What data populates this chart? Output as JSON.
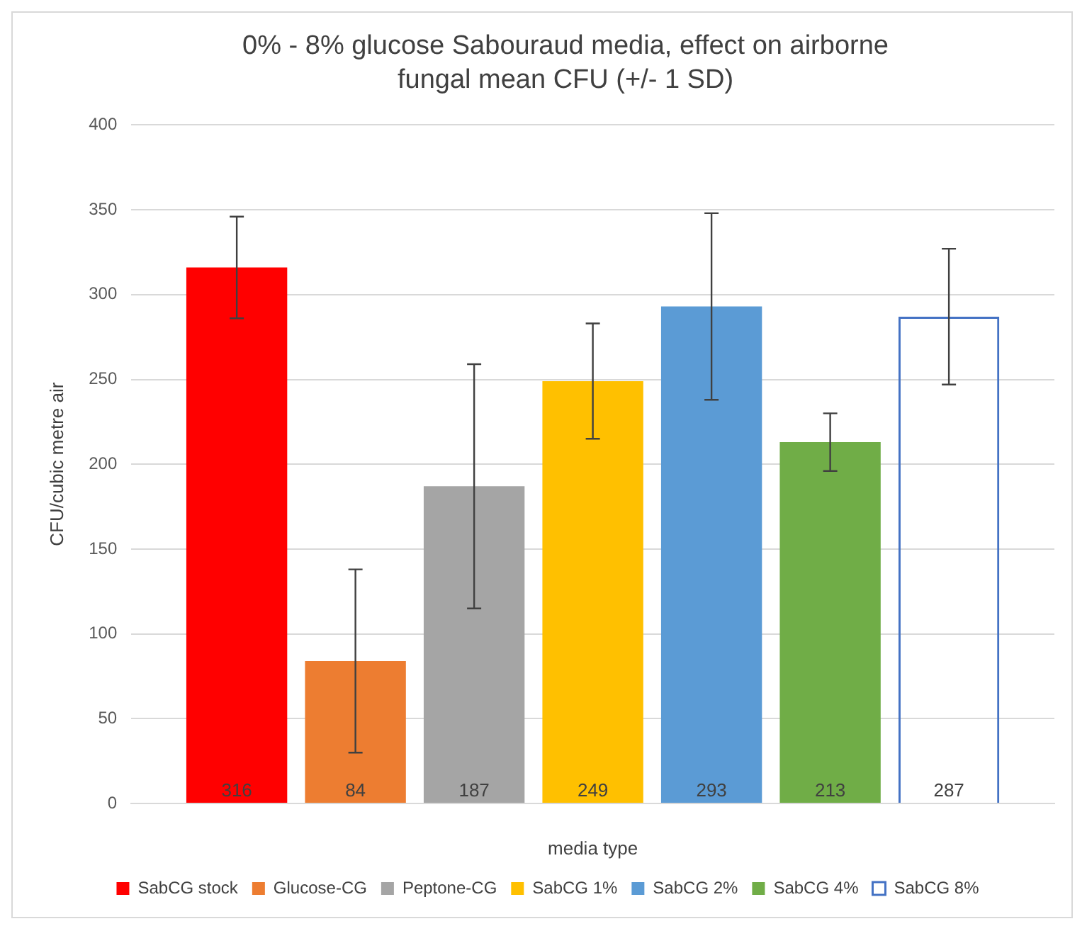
{
  "chart_data": {
    "type": "bar",
    "title": "0% - 8% glucose Sabouraud media, effect on airborne fungal mean CFU (+/- 1 SD)",
    "xlabel": "media type",
    "ylabel": "CFU/cubic metre air",
    "categories": [
      null
    ],
    "series": [
      {
        "name": "SabCG stock",
        "color": "#ff0000",
        "values": [
          316
        ],
        "errors": [
          30
        ]
      },
      {
        "name": "Glucose-CG",
        "color": "#ed7d31",
        "values": [
          84
        ],
        "errors": [
          54
        ]
      },
      {
        "name": "Peptone-CG",
        "color": "#a5a5a5",
        "values": [
          187
        ],
        "errors": [
          72
        ]
      },
      {
        "name": "SabCG 1%",
        "color": "#ffc000",
        "values": [
          249
        ],
        "errors": [
          34
        ]
      },
      {
        "name": "SabCG 2%",
        "color": "#5b9bd5",
        "values": [
          293
        ],
        "errors": [
          55
        ]
      },
      {
        "name": "SabCG 4%",
        "color": "#70ad47",
        "values": [
          213
        ],
        "errors": [
          17
        ]
      },
      {
        "name": "SabCG 8%",
        "color": "#4472c4",
        "values": [
          287
        ],
        "errors": [
          40
        ]
      }
    ],
    "ylim": [
      0,
      400
    ],
    "yticks": [
      0,
      50,
      100,
      150,
      200,
      250,
      300,
      350,
      400
    ],
    "grid": "y",
    "legend": "bottom",
    "data_labels": true
  }
}
